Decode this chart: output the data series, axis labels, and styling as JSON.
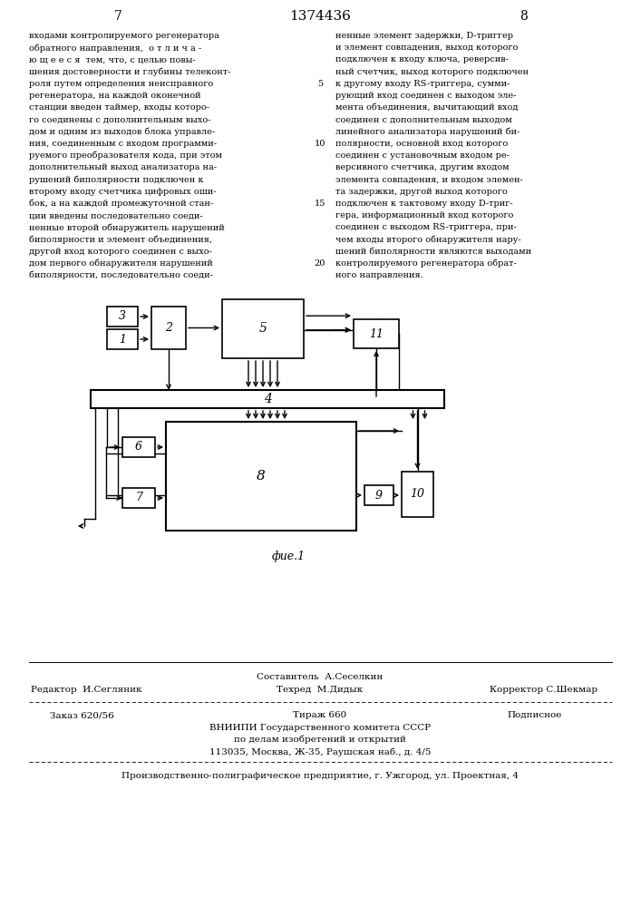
{
  "page_num_left": "7",
  "page_num_center": "1374436",
  "page_num_right": "8",
  "text_left": "входами контролируемого регенератора\nобратного направления,  о т л и ч а -\nю щ е е с я  тем, что, с целью повы-\nшения достоверности и глубины телеконт-\nроля путем определения неисправного\nрегенератора, на каждой оконечной\nстанции введен таймер, входы которо-\nго соединены с дополнительным выхо-\nдом и одним из выходов блока управле-\nния, соединенным с входом программи-\nруемого преобразователя кода, при этом\nдополнительный выход анализатора на-\nрушений биполярности подключен к\nвторому входу счетчика цифровых оши-\nбок, а на каждой промежуточной стан-\nции введены последовательно соеди-\nненные второй обнаружитель нарушений\nбиполярности и элемент объединения,\nдругой вход которого соединен с выхо-\nдом первого обнаружителя нарушений\nбиполярности, последовательно соеди-",
  "text_right": "ненные элемент задержки, D-триггер\nи элемент совпадения, выход которого\nподключен к входу ключа, реверсив-\nный счетчик, выход которого подключен\nк другому входу RS-триггера, сумми-\nрующий вход соединен с выходом эле-\nмента объединения, вычитающий вход\nсоединен с дополнительным выходом\nлинейного анализатора нарушений би-\nполярности, основной вход которого\nсоединен с установочным входом ре-\nверсивного счетчика, другим входом\nэлемента совпадения, и входом элемен-\nта задержки, другой выход которого\nподключен к тактовому входу D-триг-\nгера, информационный вход которого\nсоединен с выходом RS-триггера, при-\nчем входы второго обнаружителя нару-\nшений биполярности являются выходами\nконтролируемого регенератора обрат-\nного направления.",
  "fig_caption": "фие.1",
  "bg_color": "#ffffff"
}
